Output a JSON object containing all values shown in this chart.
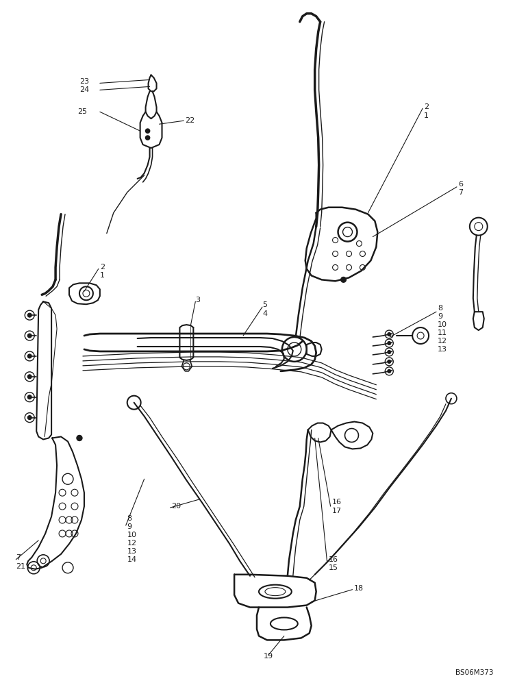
{
  "figure_id": "BS06M373",
  "bg_color": "#ffffff",
  "line_color": "#1a1a1a",
  "text_color": "#1a1a1a",
  "figsize": [
    7.52,
    10.0
  ],
  "dpi": 100
}
